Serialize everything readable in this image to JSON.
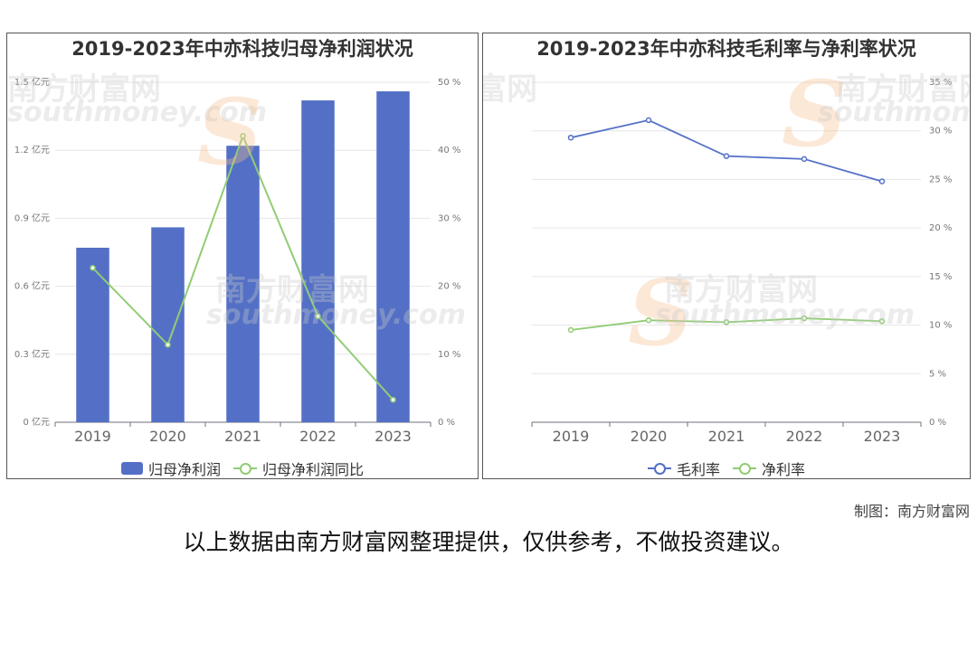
{
  "charts": {
    "left": {
      "title": "2019-2023年中亦科技归母净利润状况",
      "legend": [
        "归母净利润",
        "归母净利润同比"
      ],
      "colors": {
        "bar": "#5470c6",
        "line": "#91cc75"
      }
    },
    "right": {
      "title": "2019-2023年中亦科技毛利率与净利率状况",
      "legend": [
        "毛利率",
        "净利率"
      ],
      "colors": {
        "gross": "#5470c6",
        "net": "#91cc75"
      }
    }
  },
  "chart_data": [
    {
      "type": "bar",
      "title": "2019-2023年中亦科技归母净利润状况",
      "categories": [
        "2019",
        "2020",
        "2021",
        "2022",
        "2023"
      ],
      "series": [
        {
          "name": "归母净利润",
          "type": "bar",
          "axis": "left",
          "values": [
            0.77,
            0.86,
            1.22,
            1.42,
            1.46
          ]
        },
        {
          "name": "归母净利润同比",
          "type": "line",
          "axis": "right",
          "values": [
            22.7,
            11.4,
            42.1,
            15.6,
            3.3
          ]
        }
      ],
      "y_left": {
        "min": 0,
        "max": 1.5,
        "ticks": [
          "0 亿元",
          "0.3 亿元",
          "0.6 亿元",
          "0.9 亿元",
          "1.2 亿元",
          "1.5 亿元"
        ]
      },
      "y_right": {
        "min": 0,
        "max": 50,
        "ticks": [
          "0 %",
          "10 %",
          "20 %",
          "30 %",
          "40 %",
          "50 %"
        ]
      },
      "legend_position": "bottom",
      "grid": true
    },
    {
      "type": "line",
      "title": "2019-2023年中亦科技毛利率与净利率状况",
      "categories": [
        "2019",
        "2020",
        "2021",
        "2022",
        "2023"
      ],
      "series": [
        {
          "name": "毛利率",
          "values": [
            29.3,
            31.1,
            27.4,
            27.1,
            24.8
          ]
        },
        {
          "name": "净利率",
          "values": [
            9.5,
            10.5,
            10.3,
            10.7,
            10.4
          ]
        }
      ],
      "y_right": {
        "min": 0,
        "max": 35,
        "ticks": [
          "0 %",
          "5 %",
          "10 %",
          "15 %",
          "20 %",
          "25 %",
          "30 %",
          "35 %"
        ]
      },
      "legend_position": "bottom",
      "grid": true
    }
  ],
  "watermark": {
    "cn": "南方财富网",
    "en": "southmoney.com"
  },
  "footer": {
    "credit": "制图：南方财富网",
    "disclaimer": "以上数据由南方财富网整理提供，仅供参考，不做投资建议。"
  }
}
